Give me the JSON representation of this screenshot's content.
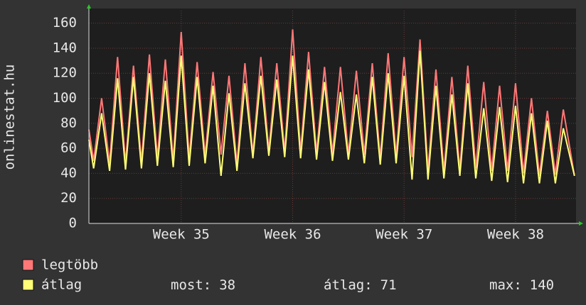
{
  "chart_data": {
    "type": "line",
    "y_label": "onlinestat.hu",
    "x": [
      0,
      0.3,
      0.8,
      1.3,
      1.8,
      2.3,
      2.8,
      3.3,
      3.8,
      4.3,
      4.8,
      5.3,
      5.8,
      6.3,
      6.8,
      7.3,
      7.8,
      8.3,
      8.8,
      9.3,
      9.8,
      10.3,
      10.8,
      11.3,
      11.8,
      12.3,
      12.8,
      13.3,
      13.8,
      14.3,
      14.8,
      15.3,
      15.8,
      16.3,
      16.8,
      17.3,
      17.8,
      18.3,
      18.8,
      19.3,
      19.8,
      20.3,
      20.8,
      21.3,
      21.8,
      22.3,
      22.8,
      23.3,
      23.8,
      24.3,
      24.8,
      25.3,
      25.8,
      26.3,
      26.8,
      27.3,
      27.8,
      28.3,
      28.8,
      29.3,
      29.8,
      30.5
    ],
    "series": [
      {
        "name": "legtöbb",
        "color": "#ff7777",
        "values": [
          75,
          50,
          100,
          48,
          133,
          48,
          126,
          49,
          135,
          52,
          131,
          50,
          153,
          52,
          129,
          54,
          121,
          55,
          118,
          47,
          128,
          55,
          133,
          58,
          128,
          57,
          155,
          57,
          137,
          56,
          125,
          56,
          125,
          55,
          122,
          55,
          128,
          52,
          136,
          54,
          133,
          53,
          147,
          42,
          123,
          42,
          117,
          43,
          126,
          44,
          113,
          42,
          110,
          42,
          112,
          40,
          100,
          38,
          90,
          39,
          91,
          38
        ]
      },
      {
        "name": "átlag",
        "color": "#ffff77",
        "values": [
          67,
          44,
          88,
          42,
          116,
          43,
          117,
          44,
          120,
          46,
          114,
          45,
          134,
          46,
          117,
          48,
          110,
          38,
          104,
          42,
          112,
          52,
          118,
          54,
          115,
          53,
          134,
          52,
          123,
          51,
          113,
          50,
          105,
          51,
          103,
          48,
          117,
          47,
          120,
          48,
          118,
          35,
          138,
          35,
          110,
          36,
          103,
          38,
          112,
          36,
          92,
          34,
          93,
          33,
          94,
          32,
          88,
          32,
          82,
          32,
          76,
          38
        ]
      }
    ],
    "xlim": [
      0,
      30.6
    ],
    "xticks": [
      {
        "value": 5.8,
        "label": "Week 35"
      },
      {
        "value": 12.8,
        "label": "Week 36"
      },
      {
        "value": 19.8,
        "label": "Week 37"
      },
      {
        "value": 26.8,
        "label": "Week 38"
      }
    ],
    "ylim": [
      0,
      170
    ],
    "yticks": [
      0,
      20,
      40,
      60,
      80,
      100,
      120,
      140,
      160
    ],
    "grid": true,
    "stats": [
      {
        "label": "most:",
        "value": 38
      },
      {
        "label": "átlag:",
        "value": 71
      },
      {
        "label": "max:",
        "value": 140
      }
    ]
  }
}
